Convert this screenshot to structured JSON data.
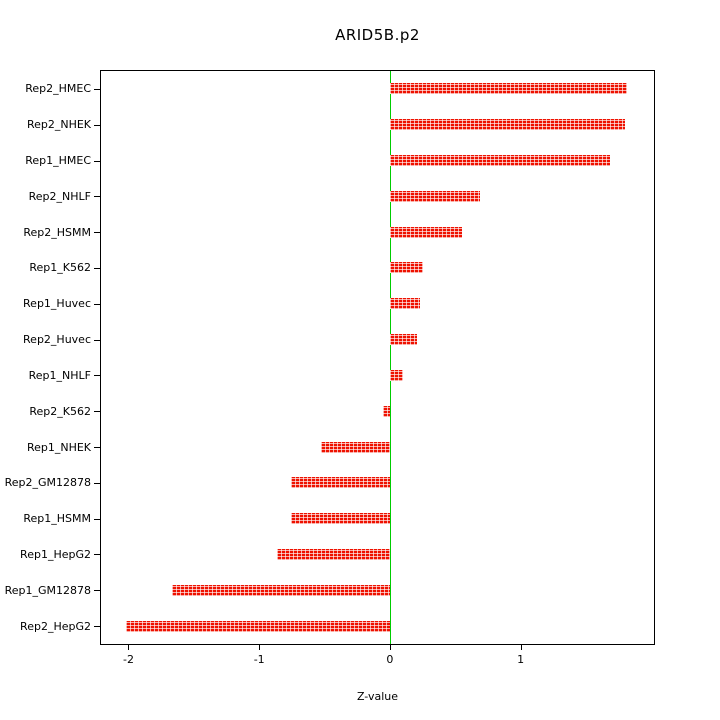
{
  "chart_data": {
    "type": "bar",
    "orientation": "horizontal",
    "title": "ARID5B.p2",
    "xlabel": "Z-value",
    "categories": [
      "Rep2_HMEC",
      "Rep2_NHEK",
      "Rep1_HMEC",
      "Rep2_NHLF",
      "Rep2_HSMM",
      "Rep1_K562",
      "Rep1_Huvec",
      "Rep2_Huvec",
      "Rep1_NHLF",
      "Rep2_K562",
      "Rep1_NHEK",
      "Rep2_GM12878",
      "Rep1_HSMM",
      "Rep1_HepG2",
      "Rep1_GM12878",
      "Rep2_HepG2"
    ],
    "values": [
      1.81,
      1.8,
      1.68,
      0.69,
      0.55,
      0.25,
      0.23,
      0.21,
      0.1,
      -0.05,
      -0.53,
      -0.76,
      -0.76,
      -0.86,
      -1.67,
      -2.02
    ],
    "xlim": [
      -2.21,
      2.02
    ],
    "xticks": [
      -2,
      -1,
      0,
      1
    ],
    "bar_color": "#ee1100",
    "zero_line_color": "#00cc00",
    "grid": false,
    "legend": null
  }
}
